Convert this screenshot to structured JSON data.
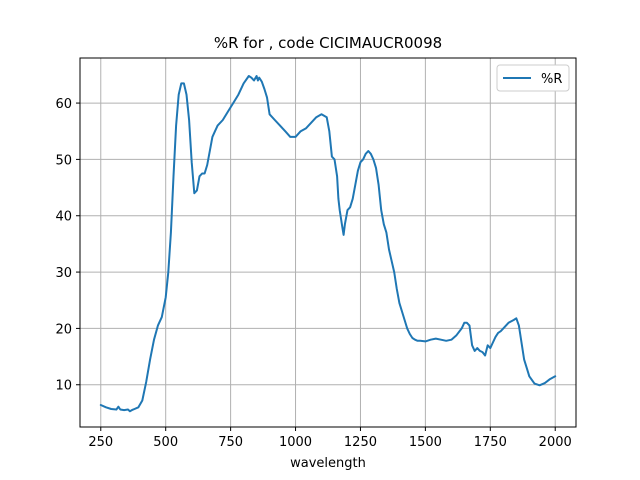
{
  "chart_data": {
    "type": "line",
    "title": "%R for  , code CICIMAUCR0098",
    "xlabel": "wavelength",
    "ylabel": "",
    "xlim": [
      170,
      2080
    ],
    "ylim": [
      2.5,
      68
    ],
    "xticks": [
      250,
      500,
      750,
      1000,
      1250,
      1500,
      1750,
      2000
    ],
    "yticks": [
      10,
      20,
      30,
      40,
      50,
      60
    ],
    "grid": true,
    "legend_position": "top-right",
    "series": [
      {
        "name": "%R",
        "color": "#1f77b4",
        "x": [
          250,
          270,
          290,
          310,
          318,
          325,
          340,
          355,
          362,
          370,
          380,
          395,
          410,
          425,
          440,
          455,
          470,
          485,
          500,
          510,
          520,
          530,
          540,
          550,
          560,
          570,
          580,
          590,
          600,
          610,
          620,
          630,
          640,
          650,
          660,
          670,
          680,
          690,
          700,
          720,
          740,
          760,
          780,
          800,
          820,
          830,
          840,
          850,
          855,
          860,
          870,
          880,
          890,
          900,
          920,
          940,
          960,
          980,
          1000,
          1020,
          1040,
          1060,
          1080,
          1100,
          1120,
          1130,
          1140,
          1150,
          1160,
          1165,
          1170,
          1180,
          1185,
          1190,
          1200,
          1210,
          1220,
          1230,
          1240,
          1250,
          1260,
          1270,
          1280,
          1290,
          1300,
          1310,
          1320,
          1330,
          1340,
          1350,
          1360,
          1370,
          1380,
          1390,
          1400,
          1410,
          1420,
          1430,
          1440,
          1450,
          1460,
          1470,
          1480,
          1500,
          1520,
          1540,
          1560,
          1580,
          1600,
          1620,
          1640,
          1650,
          1660,
          1670,
          1680,
          1690,
          1700,
          1710,
          1720,
          1730,
          1740,
          1750,
          1760,
          1770,
          1780,
          1790,
          1800,
          1820,
          1840,
          1850,
          1860,
          1870,
          1880,
          1890,
          1900,
          1920,
          1940,
          1960,
          1980,
          2000
        ],
        "y": [
          6.4,
          6.0,
          5.7,
          5.6,
          6.1,
          5.6,
          5.5,
          5.6,
          5.3,
          5.5,
          5.7,
          6.0,
          7.2,
          10.5,
          14.5,
          18.0,
          20.5,
          22.0,
          25.5,
          30.0,
          37.0,
          47.0,
          56.0,
          61.5,
          63.5,
          63.5,
          61.5,
          57.0,
          49.5,
          44.0,
          44.5,
          47.0,
          47.5,
          47.5,
          49.0,
          51.5,
          54.0,
          55.0,
          56.0,
          57.0,
          58.5,
          60.0,
          61.5,
          63.5,
          64.8,
          64.5,
          64.0,
          64.8,
          64.0,
          64.5,
          63.8,
          62.5,
          61.0,
          58.0,
          57.0,
          56.0,
          55.0,
          54.0,
          54.0,
          55.0,
          55.5,
          56.5,
          57.5,
          58.0,
          57.5,
          55.0,
          50.5,
          50.0,
          47.0,
          43.0,
          41.0,
          38.0,
          36.6,
          38.5,
          41.0,
          41.5,
          43.0,
          45.5,
          48.0,
          49.5,
          50.0,
          51.0,
          51.5,
          51.0,
          50.0,
          48.5,
          45.5,
          41.0,
          38.5,
          37.0,
          34.0,
          32.0,
          30.0,
          27.0,
          24.5,
          23.0,
          21.5,
          20.0,
          19.0,
          18.3,
          18.0,
          17.8,
          17.8,
          17.7,
          18.0,
          18.2,
          18.0,
          17.8,
          18.0,
          18.8,
          20.0,
          21.0,
          21.0,
          20.5,
          17.0,
          16.0,
          16.5,
          16.0,
          15.8,
          15.2,
          17.0,
          16.5,
          17.5,
          18.5,
          19.2,
          19.5,
          20.0,
          21.0,
          21.5,
          21.8,
          20.5,
          17.5,
          14.5,
          13.0,
          11.5,
          10.2,
          9.9,
          10.3,
          11.0,
          11.5
        ]
      }
    ]
  }
}
